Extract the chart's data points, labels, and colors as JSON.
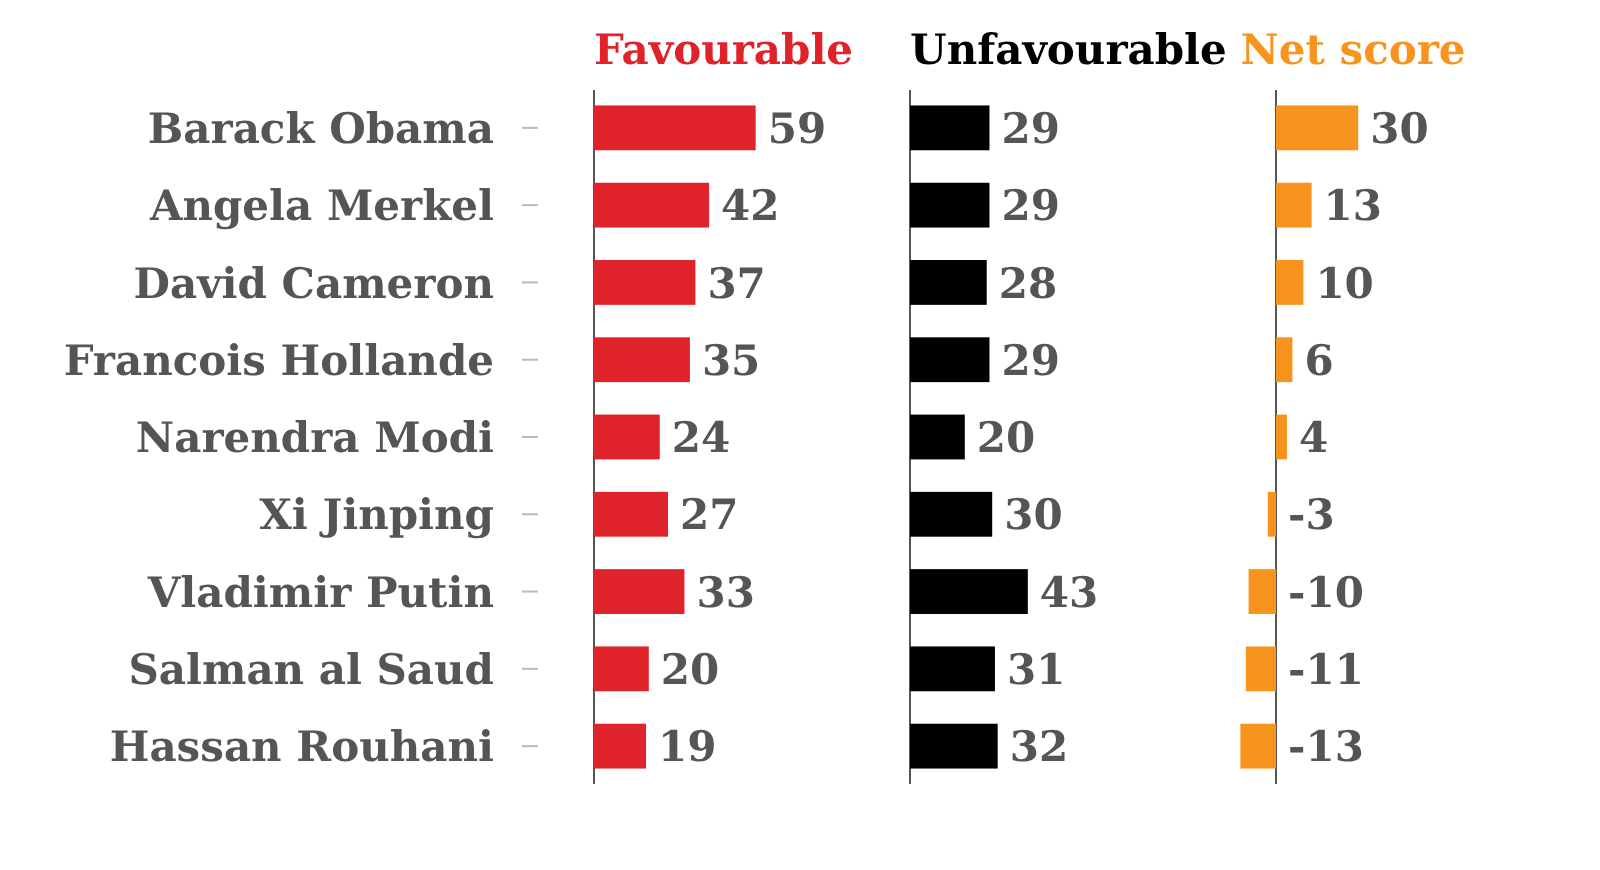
{
  "chart_data": [
    {
      "type": "bar",
      "orientation": "horizontal",
      "title": "Favourable",
      "categories": [
        "Barack Obama",
        "Angela Merkel",
        "David Cameron",
        "Francois Hollande",
        "Narendra Modi",
        "Xi Jinping",
        "Vladimir Putin",
        "Salman al Saud",
        "Hassan Rouhani"
      ],
      "values": [
        59,
        42,
        37,
        35,
        24,
        27,
        33,
        20,
        19
      ],
      "color": "#e0222a",
      "data_labels": true,
      "tick_labels": "y"
    },
    {
      "type": "bar",
      "orientation": "horizontal",
      "title": "Unfavourable",
      "categories": [
        null,
        null,
        null,
        null,
        null,
        null,
        null,
        null,
        null
      ],
      "values": [
        29,
        29,
        28,
        29,
        20,
        30,
        43,
        31,
        32
      ],
      "color": "#000000",
      "data_labels": true,
      "tick_labels": false
    },
    {
      "type": "bar",
      "orientation": "horizontal",
      "title": "Net score",
      "categories": [
        null,
        null,
        null,
        null,
        null,
        null,
        null,
        null,
        null
      ],
      "values": [
        30,
        13,
        10,
        6,
        4,
        -3,
        -10,
        -11,
        -13
      ],
      "color": "#f7941d",
      "data_labels": true,
      "tick_labels": false
    }
  ]
}
